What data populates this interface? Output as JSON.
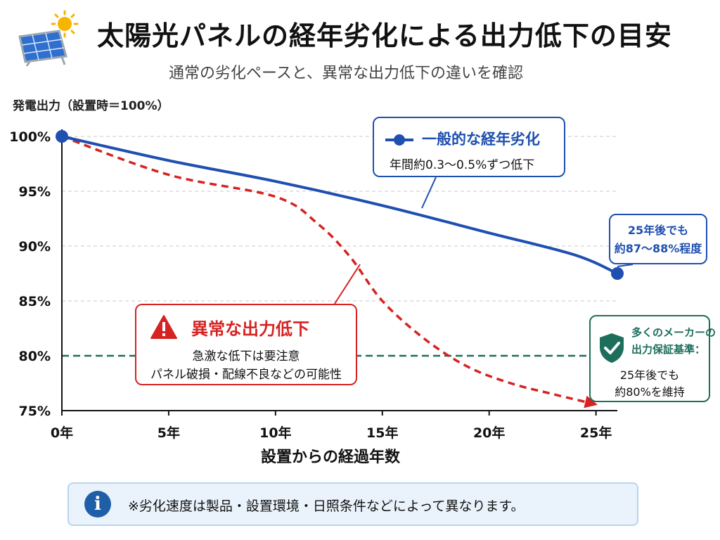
{
  "header": {
    "title": "太陽光パネルの経年劣化による出力低下の目安",
    "subtitle": "通常の劣化ペースと、異常な出力低下の違いを確認"
  },
  "chart_data": {
    "type": "line",
    "ylabel": "発電出力（設置時＝100%）",
    "xlabel": "設置からの経過年数",
    "xlim": [
      0,
      26
    ],
    "ylim": [
      75,
      100
    ],
    "x_ticks": [
      0,
      5,
      10,
      15,
      20,
      25
    ],
    "x_tick_labels": [
      "0年",
      "5年",
      "10年",
      "15年",
      "20年",
      "25年"
    ],
    "y_ticks": [
      100,
      95,
      90,
      85,
      80,
      75
    ],
    "y_tick_labels": [
      "100%",
      "95%",
      "90%",
      "85%",
      "80%",
      "75%"
    ],
    "grid": true,
    "series": [
      {
        "name": "一般的な経年劣化",
        "style": "solid",
        "color": "#1f4fb0",
        "x": [
          0,
          5,
          10,
          15,
          20,
          24,
          26
        ],
        "y": [
          100,
          97.8,
          95.9,
          93.7,
          91.2,
          89.2,
          87.5
        ]
      },
      {
        "name": "異常な出力低下",
        "style": "dashed",
        "color": "#d62222",
        "x": [
          0,
          5,
          10,
          12,
          13.5,
          15,
          17,
          19,
          21,
          23,
          24.5
        ],
        "y": [
          100,
          96.5,
          94.5,
          92,
          89,
          85,
          81.5,
          79,
          77.5,
          76.5,
          75.8
        ]
      }
    ],
    "reference_line": {
      "y": 80,
      "color": "#1e6e5c",
      "style": "dashed"
    }
  },
  "legend_box": {
    "label": "一般的な経年劣化",
    "desc": "年間約0.3〜0.5%ずつ低下"
  },
  "end_callout": {
    "line1": "25年後でも",
    "line2": "約87〜88%程度"
  },
  "abnormal_box": {
    "title": "異常な出力低下",
    "line1": "急激な低下は要注意",
    "line2": "パネル破損・配線不良などの可能性"
  },
  "guarantee_box": {
    "line1": "多くのメーカーの",
    "line2": "出力保証基準：",
    "line3": "25年後でも",
    "line4": "約80%を維持"
  },
  "note": {
    "text": "※劣化速度は製品・設置環境・日照条件などによって異なります。"
  },
  "colors": {
    "normal": "#1f4fb0",
    "abnormal": "#d62222",
    "guarantee": "#1e6e5c"
  }
}
